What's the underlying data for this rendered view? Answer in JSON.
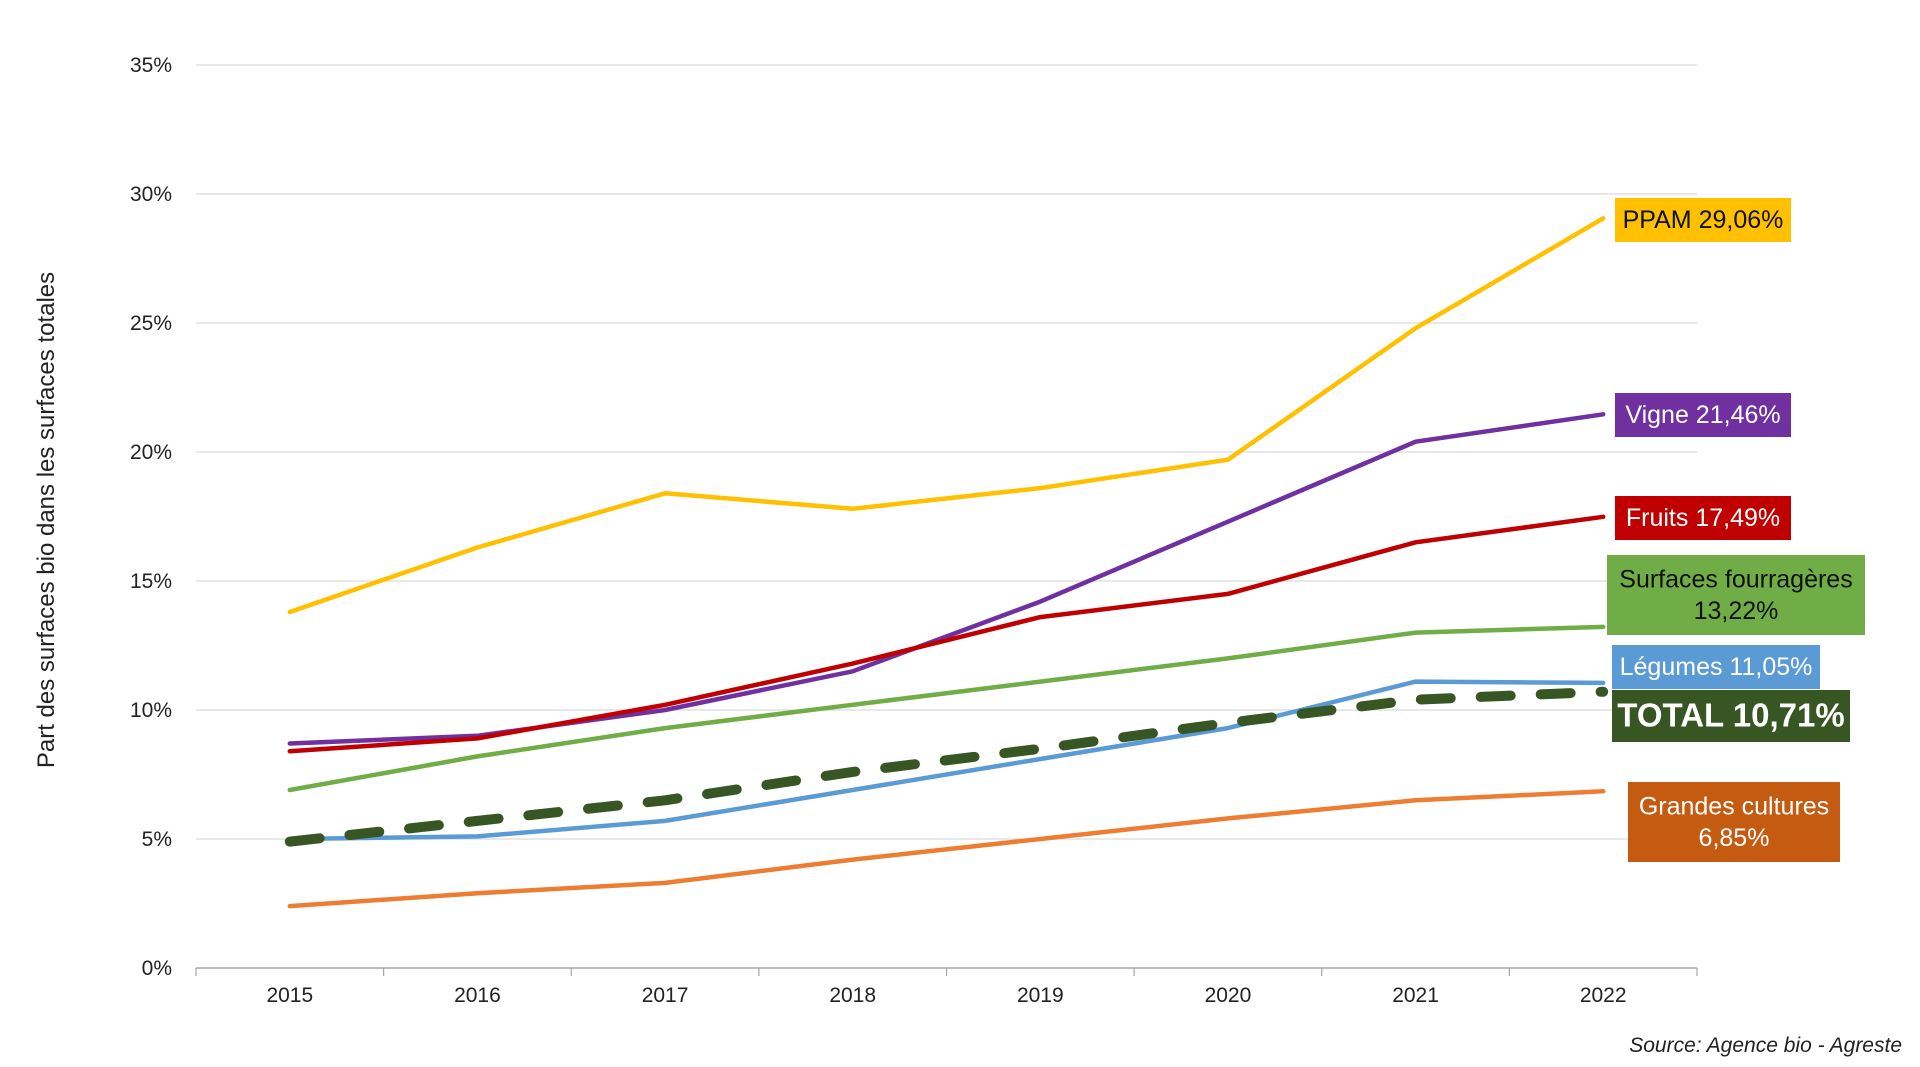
{
  "chart_data": {
    "type": "line",
    "ylabel": "Part des surfaces bio dans les surfaces totales",
    "xlabel": "",
    "categories": [
      "2015",
      "2016",
      "2017",
      "2018",
      "2019",
      "2020",
      "2021",
      "2022"
    ],
    "ylim": [
      0,
      35
    ],
    "yticks": [
      0,
      5,
      10,
      15,
      20,
      25,
      30,
      35
    ],
    "ytick_labels": [
      "0%",
      "5%",
      "10%",
      "15%",
      "20%",
      "25%",
      "30%",
      "35%"
    ],
    "grid": true,
    "legend": "end-of-line labels",
    "series": [
      {
        "name": "PPAM",
        "color": "#FFC000",
        "label_color": "#FFC000",
        "text_color": "#111111",
        "dashed": false,
        "values": [
          13.8,
          16.3,
          18.4,
          17.8,
          18.6,
          19.7,
          24.8,
          29.06
        ],
        "end_label": [
          "PPAM 29,06%"
        ]
      },
      {
        "name": "Vigne",
        "color": "#7030A0",
        "label_color": "#7030A0",
        "text_color": "#ffffff",
        "dashed": false,
        "values": [
          8.7,
          9.0,
          10.0,
          11.5,
          14.2,
          17.3,
          20.4,
          21.46
        ],
        "end_label": [
          "Vigne 21,46%"
        ]
      },
      {
        "name": "Fruits",
        "color": "#C00000",
        "label_color": "#C00000",
        "text_color": "#ffffff",
        "dashed": false,
        "values": [
          8.4,
          8.9,
          10.2,
          11.8,
          13.6,
          14.5,
          16.5,
          17.49
        ],
        "end_label": [
          "Fruits 17,49%"
        ]
      },
      {
        "name": "Surfaces fourragères",
        "color": "#70AD47",
        "label_color": "#70AD47",
        "text_color": "#111111",
        "dashed": false,
        "values": [
          6.9,
          8.2,
          9.3,
          10.2,
          11.1,
          12.0,
          13.0,
          13.22
        ],
        "end_label": [
          "Surfaces fourragères",
          "13,22%"
        ]
      },
      {
        "name": "Légumes",
        "color": "#5B9BD5",
        "label_color": "#5B9BD5",
        "text_color": "#ffffff",
        "dashed": false,
        "values": [
          5.0,
          5.1,
          5.7,
          6.9,
          8.1,
          9.3,
          11.1,
          11.05
        ],
        "end_label": [
          "Légumes 11,05%"
        ]
      },
      {
        "name": "TOTAL",
        "color": "#375623",
        "label_color": "#375623",
        "text_color": "#ffffff",
        "dashed": true,
        "values": [
          4.9,
          5.7,
          6.5,
          7.6,
          8.5,
          9.5,
          10.4,
          10.71
        ],
        "end_label": [
          "TOTAL 10,71%"
        ]
      },
      {
        "name": "Grandes cultures",
        "color": "#ED7D31",
        "label_color": "#C55A11",
        "text_color": "#ffffff",
        "dashed": false,
        "values": [
          2.4,
          2.9,
          3.3,
          4.2,
          5.0,
          5.8,
          6.5,
          6.85
        ],
        "end_label": [
          "Grandes cultures",
          "6,85%"
        ]
      }
    ]
  },
  "source": "Source: Agence bio - Agreste"
}
